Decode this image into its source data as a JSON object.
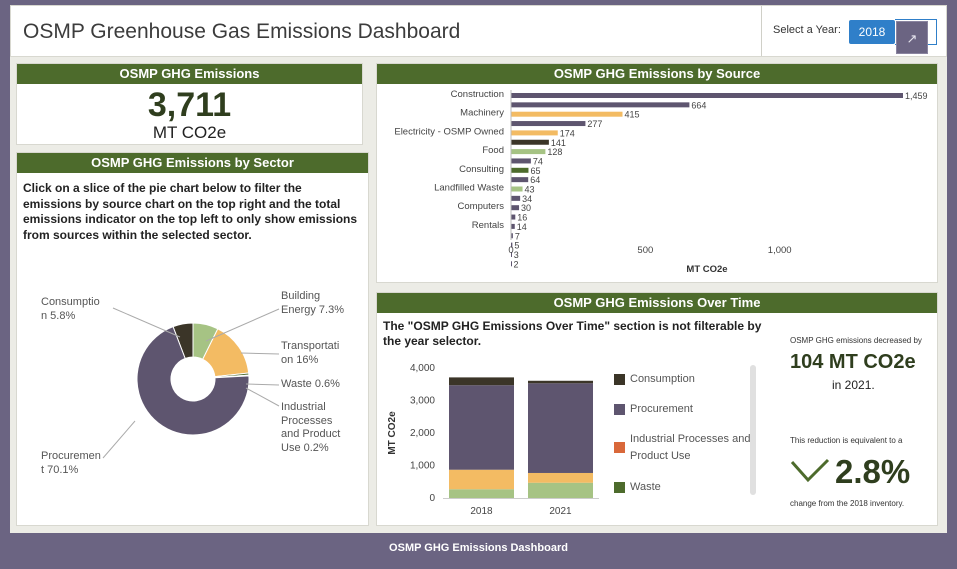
{
  "header": {
    "title": "OSMP Greenhouse Gas Emissions Dashboard",
    "select_label": "Select a Year:",
    "selected_year": "2018",
    "external_icon": "external-link-icon"
  },
  "total": {
    "title": "OSMP GHG Emissions",
    "value": "3,711",
    "unit": "MT CO2e"
  },
  "sector": {
    "title": "OSMP GHG Emissions by Sector",
    "description": "Click on a slice of the pie chart below to filter the emissions by source chart on the top right and the total emissions indicator on the top left to only show emissions from sources within the selected sector.",
    "labels": {
      "consumption": "Consumptio\nn 5.8%",
      "building": "Building\nEnergy 7.3%",
      "transportation": "Transportati\non 16%",
      "waste": "Waste 0.6%",
      "industrial": "Industrial\nProcesses\nand Product\nUse 0.2%",
      "procurement": "Procuremen\nt 70.1%"
    }
  },
  "source": {
    "title": "OSMP GHG Emissions by Source"
  },
  "time": {
    "title": "OSMP GHG Emissions Over Time",
    "note": "The \"OSMP GHG Emissions Over Time\" section is not filterable by the year selector.",
    "legend": [
      {
        "label": "Consumption",
        "color": "#3b3528"
      },
      {
        "label": "Procurement",
        "color": "#5e556f"
      },
      {
        "label": "Industrial Processes and Product Use",
        "color": "#d9683a"
      },
      {
        "label": "Waste",
        "color": "#4d6b2c"
      }
    ]
  },
  "kpi": {
    "pre": "OSMP GHG emissions decreased by",
    "amount": "104 MT CO2e",
    "year": "in 2021.",
    "equiv": "This reduction is equivalent to a",
    "pct": "2.8%",
    "post": "change from the 2018 inventory."
  },
  "footer": "OSMP GHG Emissions Dashboard",
  "chart_data": [
    {
      "type": "pie",
      "title": "OSMP GHG Emissions by Sector",
      "donut": true,
      "slices": [
        {
          "name": "Consumption",
          "value": 5.8,
          "color": "#3b3528"
        },
        {
          "name": "Building Energy",
          "value": 7.3,
          "color": "#a6c384"
        },
        {
          "name": "Transportation",
          "value": 16,
          "color": "#f3bb63"
        },
        {
          "name": "Waste",
          "value": 0.6,
          "color": "#4d6b2c"
        },
        {
          "name": "Industrial Processes and Product Use",
          "value": 0.2,
          "color": "#d9683a"
        },
        {
          "name": "Procurement",
          "value": 70.1,
          "color": "#5e556f"
        }
      ]
    },
    {
      "type": "bar",
      "orientation": "horizontal",
      "title": "OSMP GHG Emissions by Source",
      "xlabel": "MT CO2e",
      "xlim": [
        0,
        1459
      ],
      "xticks": [
        0,
        500,
        1000
      ],
      "xtick_labels": [
        "0",
        "500",
        "1,000"
      ],
      "category_labels": [
        {
          "index": 0,
          "label": "Construction"
        },
        {
          "index": 2,
          "label": "Machinery"
        },
        {
          "index": 4,
          "label": "Electricity - OSMP Owned"
        },
        {
          "index": 6,
          "label": "Food"
        },
        {
          "index": 8,
          "label": "Consulting"
        },
        {
          "index": 10,
          "label": "Landfilled Waste"
        },
        {
          "index": 12,
          "label": "Computers"
        },
        {
          "index": 14,
          "label": "Rentals"
        }
      ],
      "values": [
        1459,
        664,
        415,
        277,
        174,
        141,
        128,
        74,
        65,
        64,
        43,
        34,
        30,
        16,
        14,
        7,
        5,
        3,
        2
      ],
      "value_labels": [
        "1,459",
        "664",
        "415",
        "277",
        "174",
        "141",
        "128",
        "74",
        "65",
        "64",
        "43",
        "34",
        "30",
        "16",
        "14",
        "7",
        "5",
        "3",
        "2"
      ],
      "colors": [
        "#5e556f",
        "#5e556f",
        "#f3bb63",
        "#5e556f",
        "#f3bb63",
        "#3b3528",
        "#a6c384",
        "#5e556f",
        "#4d6b2c",
        "#5e556f",
        "#a6c384",
        "#5e556f",
        "#5e556f",
        "#5e556f",
        "#5e556f",
        "#5e556f",
        "#5e556f",
        "#5e556f",
        "#5e556f"
      ]
    },
    {
      "type": "bar",
      "stacked": true,
      "title": "OSMP GHG Emissions Over Time",
      "categories": [
        "2018",
        "2021"
      ],
      "ylabel": "MT CO2e",
      "ylim": [
        0,
        4000
      ],
      "yticks": [
        "0",
        "1,000",
        "2,000",
        "3,000",
        "4,000"
      ],
      "series": [
        {
          "name": "Waste",
          "color": "#4d6b2c",
          "values": [
            0,
            0
          ]
        },
        {
          "name": "Building Energy",
          "color": "#a6c384",
          "values": [
            270,
            470
          ]
        },
        {
          "name": "Transportation",
          "color": "#f3bb63",
          "values": [
            600,
            300
          ]
        },
        {
          "name": "Industrial Processes and Product Use",
          "color": "#d9683a",
          "values": [
            0,
            0
          ]
        },
        {
          "name": "Procurement",
          "color": "#5e556f",
          "values": [
            2600,
            2760
          ]
        },
        {
          "name": "Consumption",
          "color": "#3b3528",
          "values": [
            241,
            77
          ]
        }
      ]
    }
  ]
}
